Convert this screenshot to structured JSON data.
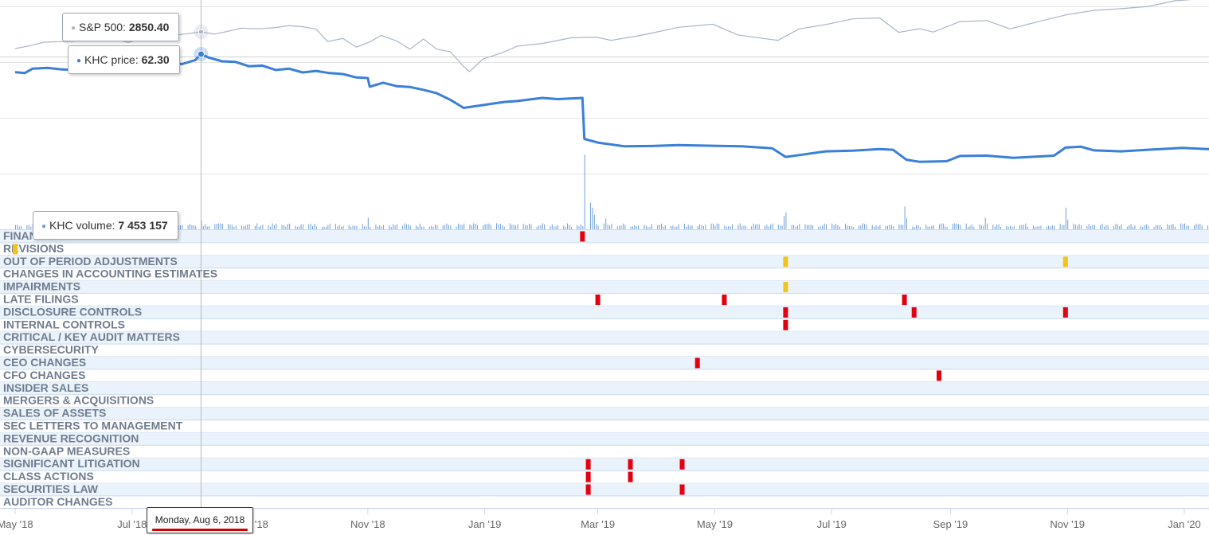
{
  "chart_data": {
    "type": "line",
    "x_axis": {
      "type": "date",
      "range": [
        "2018-05-01",
        "2020-01-31"
      ],
      "tick_labels": [
        "May '18",
        "Jul '18",
        "Sep '18",
        "Nov '18",
        "Jan '19",
        "Mar '19",
        "May '19",
        "Jul '19",
        "Sep '19",
        "Nov '19",
        "Jan '20"
      ],
      "tick_dates": [
        "2018-05-01",
        "2018-07-01",
        "2018-09-01",
        "2018-11-01",
        "2019-01-01",
        "2019-03-01",
        "2019-05-01",
        "2019-07-01",
        "2019-09-01",
        "2019-11-01",
        "2020-01-01"
      ]
    },
    "grid": true,
    "series": [
      {
        "name": "S&P 500",
        "color": "#aab4c6",
        "points": [
          [
            "2018-05-01",
            2640
          ],
          [
            "2018-05-08",
            2672
          ],
          [
            "2018-05-16",
            2720
          ],
          [
            "2018-05-24",
            2727
          ],
          [
            "2018-06-01",
            2734
          ],
          [
            "2018-06-08",
            2779
          ],
          [
            "2018-06-14",
            2783
          ],
          [
            "2018-06-22",
            2754
          ],
          [
            "2018-06-29",
            2718
          ],
          [
            "2018-07-06",
            2759
          ],
          [
            "2018-07-13",
            2801
          ],
          [
            "2018-07-20",
            2802
          ],
          [
            "2018-07-27",
            2818
          ],
          [
            "2018-08-03",
            2840
          ],
          [
            "2018-08-06",
            2850.4
          ],
          [
            "2018-08-13",
            2821
          ],
          [
            "2018-08-20",
            2857
          ],
          [
            "2018-08-27",
            2896
          ],
          [
            "2018-09-05",
            2888
          ],
          [
            "2018-09-14",
            2904
          ],
          [
            "2018-09-21",
            2929
          ],
          [
            "2018-09-28",
            2914
          ],
          [
            "2018-10-05",
            2885
          ],
          [
            "2018-10-11",
            2728
          ],
          [
            "2018-10-19",
            2767
          ],
          [
            "2018-10-26",
            2658
          ],
          [
            "2018-11-02",
            2723
          ],
          [
            "2018-11-08",
            2806
          ],
          [
            "2018-11-16",
            2736
          ],
          [
            "2018-11-23",
            2632
          ],
          [
            "2018-11-30",
            2760
          ],
          [
            "2018-12-07",
            2633
          ],
          [
            "2018-12-14",
            2600
          ],
          [
            "2018-12-21",
            2416
          ],
          [
            "2018-12-24",
            2351
          ],
          [
            "2018-12-31",
            2507
          ],
          [
            "2019-01-11",
            2596
          ],
          [
            "2019-01-18",
            2671
          ],
          [
            "2019-01-31",
            2704
          ],
          [
            "2019-02-15",
            2775
          ],
          [
            "2019-02-28",
            2784
          ],
          [
            "2019-03-08",
            2743
          ],
          [
            "2019-03-22",
            2800
          ],
          [
            "2019-03-29",
            2834
          ],
          [
            "2019-04-12",
            2907
          ],
          [
            "2019-04-30",
            2946
          ],
          [
            "2019-05-13",
            2812
          ],
          [
            "2019-05-31",
            2752
          ],
          [
            "2019-06-03",
            2744
          ],
          [
            "2019-06-14",
            2887
          ],
          [
            "2019-06-28",
            2942
          ],
          [
            "2019-07-12",
            3013
          ],
          [
            "2019-07-26",
            3025
          ],
          [
            "2019-08-05",
            2844
          ],
          [
            "2019-08-16",
            2889
          ],
          [
            "2019-08-23",
            2847
          ],
          [
            "2019-09-06",
            2979
          ],
          [
            "2019-09-20",
            2992
          ],
          [
            "2019-10-02",
            2887
          ],
          [
            "2019-10-18",
            2986
          ],
          [
            "2019-11-01",
            3067
          ],
          [
            "2019-11-15",
            3120
          ],
          [
            "2019-11-29",
            3141
          ],
          [
            "2019-12-13",
            3169
          ],
          [
            "2019-12-27",
            3240
          ],
          [
            "2020-01-10",
            3265
          ],
          [
            "2020-01-17",
            3329
          ],
          [
            "2020-01-31",
            3340
          ]
        ]
      },
      {
        "name": "KHC price",
        "color": "#3a7fd8",
        "points": [
          [
            "2018-05-01",
            56.5
          ],
          [
            "2018-05-06",
            56.2
          ],
          [
            "2018-05-10",
            57.6
          ],
          [
            "2018-05-18",
            57.9
          ],
          [
            "2018-05-25",
            57.4
          ],
          [
            "2018-06-01",
            57.2
          ],
          [
            "2018-06-08",
            57.9
          ],
          [
            "2018-06-15",
            57.6
          ],
          [
            "2018-06-22",
            58.6
          ],
          [
            "2018-06-29",
            58.1
          ],
          [
            "2018-07-06",
            58.9
          ],
          [
            "2018-07-13",
            59.3
          ],
          [
            "2018-07-20",
            59.6
          ],
          [
            "2018-07-27",
            59.1
          ],
          [
            "2018-08-03",
            60.4
          ],
          [
            "2018-08-06",
            62.3
          ],
          [
            "2018-08-10",
            61.2
          ],
          [
            "2018-08-17",
            60.0
          ],
          [
            "2018-08-24",
            59.8
          ],
          [
            "2018-08-31",
            58.4
          ],
          [
            "2018-09-07",
            58.6
          ],
          [
            "2018-09-14",
            57.2
          ],
          [
            "2018-09-21",
            57.6
          ],
          [
            "2018-09-28",
            56.4
          ],
          [
            "2018-10-05",
            56.9
          ],
          [
            "2018-10-12",
            56.2
          ],
          [
            "2018-10-19",
            55.9
          ],
          [
            "2018-10-26",
            54.8
          ],
          [
            "2018-11-01",
            54.6
          ],
          [
            "2018-11-02",
            51.8
          ],
          [
            "2018-11-09",
            53.1
          ],
          [
            "2018-11-16",
            52.0
          ],
          [
            "2018-11-23",
            51.7
          ],
          [
            "2018-11-30",
            50.8
          ],
          [
            "2018-12-07",
            49.7
          ],
          [
            "2018-12-14",
            47.6
          ],
          [
            "2018-12-21",
            45.0
          ],
          [
            "2018-12-31",
            45.9
          ],
          [
            "2019-01-11",
            46.9
          ],
          [
            "2019-01-18",
            47.2
          ],
          [
            "2019-01-31",
            48.2
          ],
          [
            "2019-02-08",
            47.8
          ],
          [
            "2019-02-21",
            48.2
          ],
          [
            "2019-02-22",
            35.0
          ],
          [
            "2019-03-01",
            33.8
          ],
          [
            "2019-03-15",
            32.6
          ],
          [
            "2019-03-29",
            32.7
          ],
          [
            "2019-04-12",
            33.0
          ],
          [
            "2019-04-30",
            32.8
          ],
          [
            "2019-05-15",
            32.6
          ],
          [
            "2019-05-31",
            32.0
          ],
          [
            "2019-06-07",
            29.2
          ],
          [
            "2019-06-14",
            29.8
          ],
          [
            "2019-06-28",
            31.0
          ],
          [
            "2019-07-12",
            31.2
          ],
          [
            "2019-07-26",
            31.7
          ],
          [
            "2019-08-02",
            31.5
          ],
          [
            "2019-08-09",
            28.3
          ],
          [
            "2019-08-16",
            27.6
          ],
          [
            "2019-08-30",
            27.8
          ],
          [
            "2019-09-06",
            29.5
          ],
          [
            "2019-09-20",
            29.6
          ],
          [
            "2019-10-04",
            28.9
          ],
          [
            "2019-10-25",
            29.6
          ],
          [
            "2019-10-31",
            32.2
          ],
          [
            "2019-11-08",
            32.5
          ],
          [
            "2019-11-15",
            31.3
          ],
          [
            "2019-11-29",
            31.0
          ],
          [
            "2019-12-13",
            31.5
          ],
          [
            "2019-12-31",
            32.1
          ],
          [
            "2020-01-17",
            31.6
          ],
          [
            "2020-01-24",
            30.7
          ],
          [
            "2020-01-31",
            31.4
          ]
        ]
      },
      {
        "name": "KHC volume",
        "type": "bar",
        "color": "#6ea0dc",
        "spikes": [
          [
            "2018-08-06",
            7453157
          ],
          [
            "2018-11-01",
            9500000
          ],
          [
            "2019-02-22",
            62000000
          ],
          [
            "2019-02-25",
            22000000
          ],
          [
            "2019-02-26",
            18000000
          ],
          [
            "2019-02-27",
            12000000
          ],
          [
            "2019-03-05",
            9000000
          ],
          [
            "2019-06-06",
            11000000
          ],
          [
            "2019-06-07",
            14000000
          ],
          [
            "2019-08-08",
            19000000
          ],
          [
            "2019-08-09",
            9000000
          ],
          [
            "2019-09-19",
            9500000
          ],
          [
            "2019-10-31",
            18000000
          ],
          [
            "2019-11-01",
            8000000
          ]
        ],
        "baseline": 3500000
      }
    ],
    "event_rows": [
      {
        "label": "FINANCIAL RESTATEMENTS",
        "events": [
          {
            "date": "2019-02-21",
            "severity": "red"
          }
        ]
      },
      {
        "label": "REVISIONS",
        "events": [
          {
            "date": "2018-05-01",
            "severity": "yellow"
          }
        ]
      },
      {
        "label": "OUT OF PERIOD ADJUSTMENTS",
        "events": [
          {
            "date": "2019-06-07",
            "severity": "yellow"
          },
          {
            "date": "2019-10-31",
            "severity": "yellow"
          }
        ]
      },
      {
        "label": "CHANGES IN ACCOUNTING ESTIMATES",
        "events": []
      },
      {
        "label": "IMPAIRMENTS",
        "events": [
          {
            "date": "2019-06-07",
            "severity": "yellow"
          }
        ]
      },
      {
        "label": "LATE FILINGS",
        "events": [
          {
            "date": "2019-03-01",
            "severity": "red"
          },
          {
            "date": "2019-05-06",
            "severity": "red"
          },
          {
            "date": "2019-08-08",
            "severity": "red"
          }
        ]
      },
      {
        "label": "DISCLOSURE CONTROLS",
        "events": [
          {
            "date": "2019-06-07",
            "severity": "red"
          },
          {
            "date": "2019-08-13",
            "severity": "red"
          },
          {
            "date": "2019-10-31",
            "severity": "red"
          }
        ]
      },
      {
        "label": "INTERNAL CONTROLS",
        "events": [
          {
            "date": "2019-06-07",
            "severity": "red"
          }
        ]
      },
      {
        "label": "CRITICAL / KEY AUDIT MATTERS",
        "events": []
      },
      {
        "label": "CYBERSECURITY",
        "events": []
      },
      {
        "label": "CEO CHANGES",
        "events": [
          {
            "date": "2019-04-22",
            "severity": "red"
          }
        ]
      },
      {
        "label": "CFO CHANGES",
        "events": [
          {
            "date": "2019-08-26",
            "severity": "red"
          }
        ]
      },
      {
        "label": "INSIDER SALES",
        "events": []
      },
      {
        "label": "MERGERS & ACQUISITIONS",
        "events": []
      },
      {
        "label": "SALES OF ASSETS",
        "events": []
      },
      {
        "label": "SEC LETTERS TO MANAGEMENT",
        "events": []
      },
      {
        "label": "REVENUE RECOGNITION",
        "events": []
      },
      {
        "label": "NON-GAAP MEASURES",
        "events": []
      },
      {
        "label": "SIGNIFICANT LITIGATION",
        "events": [
          {
            "date": "2019-02-24",
            "severity": "red"
          },
          {
            "date": "2019-03-18",
            "severity": "red"
          },
          {
            "date": "2019-04-14",
            "severity": "red"
          }
        ]
      },
      {
        "label": "CLASS ACTIONS",
        "events": [
          {
            "date": "2019-02-24",
            "severity": "red"
          },
          {
            "date": "2019-03-18",
            "severity": "red"
          }
        ]
      },
      {
        "label": "SECURITIES LAW",
        "events": [
          {
            "date": "2019-02-24",
            "severity": "red"
          },
          {
            "date": "2019-04-14",
            "severity": "red"
          }
        ]
      },
      {
        "label": "AUDITOR CHANGES",
        "events": []
      }
    ],
    "colors": {
      "red": "#e3000f",
      "yellow": "#f2c318",
      "row_band": "#eaf3fb",
      "row_line": "#c9dcee"
    },
    "crosshair_date": "2018-08-06"
  },
  "tooltips": {
    "sp500": {
      "label": "S&P 500: ",
      "value": "2850.40"
    },
    "price": {
      "label": "KHC price: ",
      "value": "62.30"
    },
    "volume": {
      "label": "KHC volume: ",
      "value": "7 453 157"
    },
    "date": "Monday, Aug 6, 2018"
  }
}
